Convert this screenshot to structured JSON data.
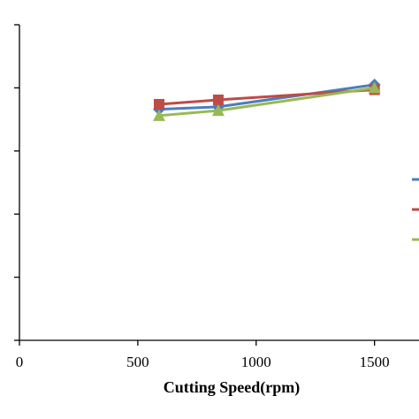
{
  "chart_data": {
    "type": "line",
    "title": "",
    "xlabel": "Cutting Speed(rpm)",
    "ylabel": "",
    "xlim": [
      0,
      1800
    ],
    "ylim": [
      0,
      500
    ],
    "x_ticks": [
      0,
      500,
      1000,
      1500
    ],
    "x_tick_labels": [
      "0",
      "500",
      "1000",
      "1500"
    ],
    "y_ticks": [
      0,
      100,
      200,
      300,
      400,
      500
    ],
    "grid": false,
    "legend_position": "right",
    "series": [
      {
        "color": "#4a7ebb",
        "marker": "diamond",
        "x": [
          590,
          840,
          1500
        ],
        "y": [
          366,
          370,
          405
        ]
      },
      {
        "color": "#be4b48",
        "marker": "square",
        "x": [
          590,
          840,
          1500
        ],
        "y": [
          374,
          381,
          397
        ]
      },
      {
        "color": "#98b954",
        "marker": "triangle",
        "x": [
          590,
          840,
          1500
        ],
        "y": [
          356,
          364,
          400
        ]
      }
    ]
  }
}
